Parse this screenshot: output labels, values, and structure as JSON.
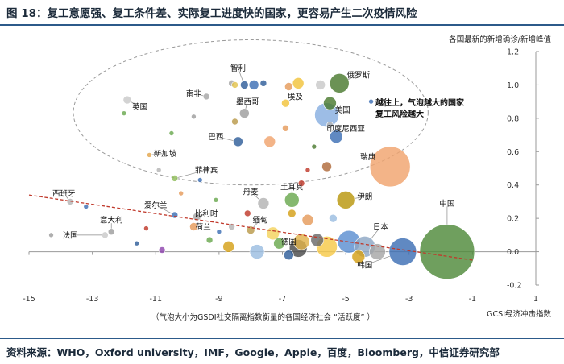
{
  "title": "图 18：复工意愿强、复工条件差、实际复工进度快的国家，更容易产生二次疫情风险",
  "source": "资料来源：WHO，Oxford university，IMF，Google，Apple，百度，Bloomberg，中信证券研究部",
  "chart_data": {
    "type": "scatter",
    "subtype": "bubble",
    "xlabel": "GCSI经济冲击指数",
    "ylabel": "各国最新的新增确诊/新增峰值",
    "xlim": [
      -15,
      1
    ],
    "ylim": [
      -0.2,
      1.2
    ],
    "xticks": [
      -15,
      -13,
      -11,
      -9,
      -7,
      -5,
      -3,
      -1,
      1
    ],
    "yticks": [
      -0.2,
      0.0,
      0.2,
      0.4,
      0.6,
      0.8,
      1.0,
      1.2
    ],
    "grid": false,
    "bubble_note": "（气泡大小为GSDI社交隔离指数衡量的各国经济社会 “活跃度” ）",
    "cluster_annotation": [
      "越往上，气泡越大的国家",
      "复工风险越大"
    ],
    "trendline": {
      "from": [
        -15,
        0.34
      ],
      "to": [
        -1,
        -0.05
      ],
      "color": "#c0392b",
      "style": "dashed"
    },
    "cluster_ellipse": {
      "center": [
        -8.0,
        0.835
      ],
      "rx": 5.6,
      "ry": 0.435
    },
    "points": [
      {
        "label": "中国",
        "x": -1.8,
        "y": 0.0,
        "r": 34,
        "color": "#4f8a3a",
        "lx": -1.8,
        "ly": 0.29
      },
      {
        "label": "瑞典",
        "x": -3.6,
        "y": 0.51,
        "r": 25,
        "color": "#f0a36e",
        "lx": -4.3,
        "ly": 0.57
      },
      {
        "label": "美国",
        "x": -5.6,
        "y": 0.82,
        "r": 15,
        "color": "#88aee0",
        "lx": -5.1,
        "ly": 0.85
      },
      {
        "label": "俄罗斯",
        "x": -5.2,
        "y": 1.01,
        "r": 12,
        "color": "#4a7a30",
        "lx": -4.6,
        "ly": 1.06
      },
      {
        "label": "韩国",
        "x": -3.2,
        "y": 0.0,
        "r": 17,
        "color": "#3d6fb5",
        "lx": -4.4,
        "ly": -0.08
      },
      {
        "label": "日本",
        "x": -4.4,
        "y": 0.03,
        "r": 13,
        "color": "#8ea7c4",
        "lx": -3.9,
        "ly": 0.15
      },
      {
        "label": "伊朗",
        "x": -5.0,
        "y": 0.31,
        "r": 11,
        "color": "#b8960c",
        "lx": -4.4,
        "ly": 0.33
      },
      {
        "label": "土耳其",
        "x": -6.7,
        "y": 0.31,
        "r": 9,
        "color": "#6aa84f",
        "lx": -6.7,
        "ly": 0.39
      },
      {
        "label": "丹麦",
        "x": -7.6,
        "y": 0.29,
        "r": 7,
        "color": "#b3b3b3",
        "lx": -8.0,
        "ly": 0.36
      },
      {
        "label": "印度尼西亚",
        "x": -5.3,
        "y": 0.69,
        "r": 8,
        "color": "#3d6fb5",
        "lx": -5.0,
        "ly": 0.74
      },
      {
        "label": "埃及",
        "x": -6.9,
        "y": 0.89,
        "r": 5,
        "color": "#f2c33c",
        "lx": -6.6,
        "ly": 0.93
      },
      {
        "label": "墨西哥",
        "x": -8.2,
        "y": 0.83,
        "r": 6,
        "color": "#9e9e9e",
        "lx": -8.1,
        "ly": 0.9
      },
      {
        "label": "巴西",
        "x": -8.4,
        "y": 0.66,
        "r": 6,
        "color": "#2f5e9a",
        "lx": -9.1,
        "ly": 0.69
      },
      {
        "label": "智利",
        "x": -8.2,
        "y": 1.0,
        "r": 5,
        "color": "#2f5e9a",
        "lx": -8.4,
        "ly": 1.1
      },
      {
        "label": "南非",
        "x": -9.4,
        "y": 0.93,
        "r": 4,
        "color": "#a6a6a6",
        "lx": -9.8,
        "ly": 0.95
      },
      {
        "label": "英国",
        "x": -11.9,
        "y": 0.91,
        "r": 5,
        "color": "#c9c9c9",
        "lx": -11.5,
        "ly": 0.87
      },
      {
        "label": "新加坡",
        "x": -11.2,
        "y": 0.58,
        "r": 3,
        "color": "#e3a64d",
        "lx": -10.7,
        "ly": 0.59
      },
      {
        "label": "菲律宾",
        "x": -10.4,
        "y": 0.44,
        "r": 4,
        "color": "#8fbc5a",
        "lx": -9.4,
        "ly": 0.49
      },
      {
        "label": "西班牙",
        "x": -13.7,
        "y": 0.3,
        "r": 4,
        "color": "#b5b5b5",
        "lx": -13.9,
        "ly": 0.35
      },
      {
        "label": "爱尔兰",
        "x": -10.4,
        "y": 0.22,
        "r": 4,
        "color": "#3d6fb5",
        "lx": -11.0,
        "ly": 0.28
      },
      {
        "label": "意大利",
        "x": -12.4,
        "y": 0.12,
        "r": 4,
        "color": "#9e9e9e",
        "lx": -12.4,
        "ly": 0.19
      },
      {
        "label": "法国",
        "x": -12.6,
        "y": 0.1,
        "r": 4,
        "color": "#c9c9c9",
        "lx": -13.7,
        "ly": 0.1
      },
      {
        "label": "比利时",
        "x": -9.7,
        "y": 0.21,
        "r": 5,
        "color": "#a8a8a8",
        "lx": -9.4,
        "ly": 0.23
      },
      {
        "label": "荷兰",
        "x": -9.8,
        "y": 0.15,
        "r": 5,
        "color": "#e59b5b",
        "lx": -9.5,
        "ly": 0.15
      },
      {
        "label": "德国",
        "x": -6.4,
        "y": 0.06,
        "r": 10,
        "color": "#e0b24a",
        "lx": -6.8,
        "ly": 0.06
      },
      {
        "label": "缅甸",
        "x": -8.0,
        "y": 0.13,
        "r": 5,
        "color": "#b99a4a",
        "lx": -7.7,
        "ly": 0.19
      },
      {
        "x": -7.3,
        "y": 0.11,
        "r": 8,
        "color": "#f4d35e"
      },
      {
        "x": -6.5,
        "y": 0.02,
        "r": 11,
        "color": "#4a4a4a"
      },
      {
        "x": -5.6,
        "y": 0.03,
        "r": 13,
        "color": "#f7c948"
      },
      {
        "x": -4.9,
        "y": 0.06,
        "r": 14,
        "color": "#5b8fd1"
      },
      {
        "x": -4.0,
        "y": 0.0,
        "r": 10,
        "color": "#a6a6a6"
      },
      {
        "x": -5.9,
        "y": 0.07,
        "r": 8,
        "color": "#6a6a6a"
      },
      {
        "x": -6.2,
        "y": 0.19,
        "r": 7,
        "color": "#e59b5b"
      },
      {
        "x": -8.7,
        "y": 0.03,
        "r": 7,
        "color": "#d4a017"
      },
      {
        "x": -7.8,
        "y": 0.0,
        "r": 9,
        "color": "#9bbde0"
      },
      {
        "x": -7.1,
        "y": 0.05,
        "r": 7,
        "color": "#6aa84f"
      },
      {
        "x": -5.6,
        "y": 0.51,
        "r": 6,
        "color": "#b06a3a"
      },
      {
        "x": -5.5,
        "y": 0.89,
        "r": 8,
        "color": "#4a7a30"
      },
      {
        "x": -5.8,
        "y": 1.0,
        "r": 6,
        "color": "#c9c9c9"
      },
      {
        "x": -6.5,
        "y": 1.01,
        "r": 7,
        "color": "#f2c33c"
      },
      {
        "x": -6.8,
        "y": 0.99,
        "r": 5,
        "color": "#e59b5b"
      },
      {
        "x": -7.9,
        "y": 1.0,
        "r": 6,
        "color": "#3d6fb5"
      },
      {
        "x": -7.6,
        "y": 1.01,
        "r": 4,
        "color": "#2f5e9a"
      },
      {
        "x": -8.6,
        "y": 1.01,
        "r": 4,
        "color": "#a6a6a6"
      },
      {
        "x": -8.5,
        "y": 1.0,
        "r": 4,
        "color": "#e3c34d"
      },
      {
        "x": -6.4,
        "y": 0.41,
        "r": 4,
        "color": "#c0392b"
      },
      {
        "x": -6.9,
        "y": 0.74,
        "r": 4,
        "color": "#e59b5b"
      },
      {
        "x": -5.5,
        "y": 0.76,
        "r": 4,
        "color": "#b5b5b5"
      },
      {
        "x": -8.5,
        "y": 0.78,
        "r": 4,
        "color": "#b99a4a"
      },
      {
        "x": -9.8,
        "y": 0.81,
        "r": 3,
        "color": "#9e9e9e"
      },
      {
        "x": -10.5,
        "y": 0.71,
        "r": 3,
        "color": "#6aa84f"
      },
      {
        "x": -7.4,
        "y": 0.66,
        "r": 7,
        "color": "#f0a36e"
      },
      {
        "x": -4.2,
        "y": 0.9,
        "r": 3,
        "color": "#3d6fb5"
      },
      {
        "x": -6.0,
        "y": 0.63,
        "r": 3,
        "color": "#4a7a30"
      },
      {
        "x": -6.2,
        "y": 0.49,
        "r": 3,
        "color": "#c0392b"
      },
      {
        "x": -9.1,
        "y": 0.31,
        "r": 3,
        "color": "#6aa84f"
      },
      {
        "x": -9.6,
        "y": 0.43,
        "r": 3,
        "color": "#3d6fb5"
      },
      {
        "x": -10.2,
        "y": 0.35,
        "r": 3,
        "color": "#e59b5b"
      },
      {
        "x": -11.3,
        "y": 0.14,
        "r": 3,
        "color": "#c0392b"
      },
      {
        "x": -11.6,
        "y": 0.05,
        "r": 3,
        "color": "#2f5e9a"
      },
      {
        "x": -10.8,
        "y": 0.01,
        "r": 4,
        "color": "#8e44ad"
      },
      {
        "x": -9.3,
        "y": 0.07,
        "r": 4,
        "color": "#6aa84f"
      },
      {
        "x": -9.0,
        "y": 0.12,
        "r": 3,
        "color": "#3d6fb5"
      },
      {
        "x": -13.2,
        "y": 0.27,
        "r": 3,
        "color": "#3d6fb5"
      },
      {
        "x": -14.3,
        "y": 0.1,
        "r": 3,
        "color": "#9e9e9e"
      },
      {
        "x": -8.1,
        "y": 0.23,
        "r": 4,
        "color": "#c0392b"
      },
      {
        "x": -6.7,
        "y": 0.23,
        "r": 5,
        "color": "#d4a017"
      },
      {
        "x": -8.6,
        "y": 0.15,
        "r": 4,
        "color": "#b5b5b5"
      },
      {
        "x": -10.9,
        "y": 0.49,
        "r": 3,
        "color": "#b5b5b5"
      },
      {
        "x": -5.4,
        "y": 0.2,
        "r": 5,
        "color": "#9bbde0"
      },
      {
        "x": -6.8,
        "y": -0.02,
        "r": 6,
        "color": "#2f5e9a"
      },
      {
        "x": -4.6,
        "y": -0.03,
        "r": 8,
        "color": "#d4a017"
      },
      {
        "x": -12.0,
        "y": 0.83,
        "r": 3,
        "color": "#6aa84f"
      }
    ]
  }
}
